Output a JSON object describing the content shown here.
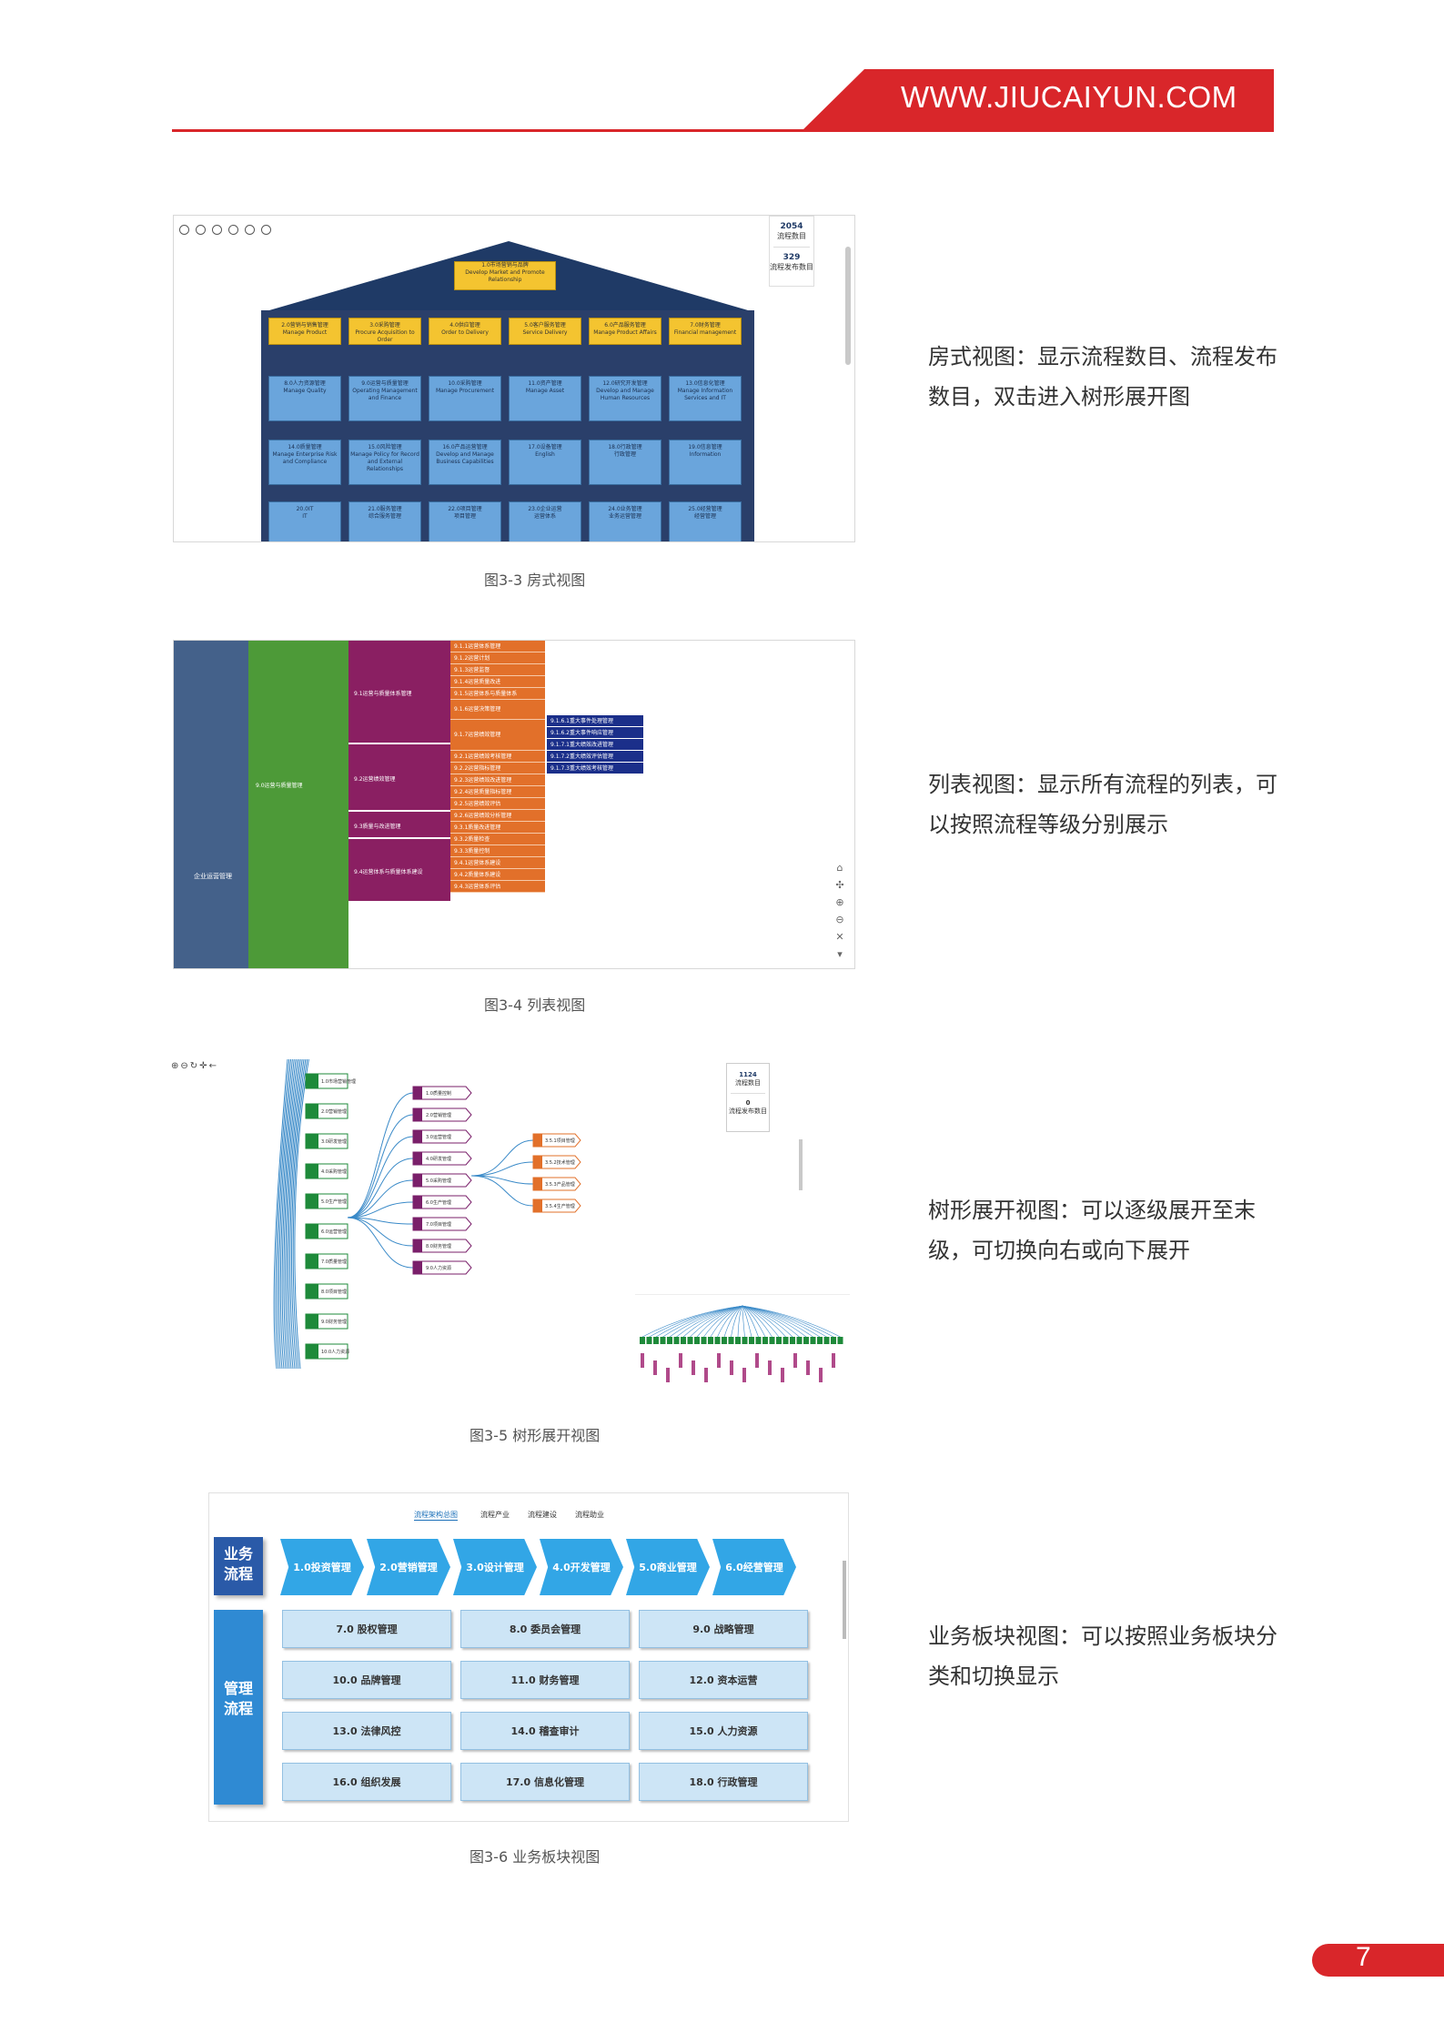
{
  "header": {
    "url": "WWW.JIUCAIYUN.COM",
    "page_number": "7"
  },
  "figures": [
    {
      "caption": "图3-3 房式视图",
      "description": "房式视图：显示流程数目、流程发布数目，双击进入树形展开图",
      "stats": {
        "process_count": "2054",
        "process_label": "流程数目",
        "published_count": "329",
        "published_label": "流程发布数目"
      },
      "roof": "1.0市场营销与品牌\nDevelop Market and Promote Relationship",
      "yellow": [
        "2.0营销与销售管理\nManage Product",
        "3.0采购管理\nProcure Acquisition to Order",
        "4.0供应管理\nOrder to Delivery",
        "5.0客户服务管理\nService Delivery",
        "6.0产品服务管理\nManage Product Affairs",
        "7.0财务管理\nFinancial management"
      ],
      "blue1": [
        "8.0人力资源管理\nManage Quality",
        "9.0运营与质量管理\nOperating Management and Finance",
        "10.0采购管理\nManage Procurement",
        "11.0资产管理\nManage Asset",
        "12.0研究开发管理\nDevelop and Manage Human Resources",
        "13.0信息化管理\nManage Information Services and IT"
      ],
      "blue2": [
        "14.0质量管理\nManage Enterprise Risk and Compliance",
        "15.0风险管理\nManage Policy for Record and External Relationships",
        "16.0产品运营管理\nDevelop and Manage Business Capabilities",
        "17.0设备管理\nEnglish",
        "18.0行政管理\n行政管理",
        "19.0信息管理\nInformation"
      ],
      "blue3": [
        "20.0IT\nIT",
        "21.0服务管理\n综合服务管理",
        "22.0项目管理\n项目管理",
        "23.0企业运营\n运营体系",
        "24.0业务管理\n业务运营管理",
        "25.0经营管理\n经营管理"
      ]
    },
    {
      "caption": "图3-4 列表视图",
      "description": "列表视图：显示所有流程的列表，可以按照流程等级分别展示",
      "l1": "企业运营管理",
      "l2": "9.0运营与质量管理",
      "l3": [
        "9.1运营与质量体系管理",
        "9.2运营绩效管理",
        "9.3质量与改进管理",
        "9.4运营体系与质量体系建设"
      ],
      "l4": [
        "9.1.1运营体系管理",
        "9.1.2运营计划",
        "9.1.3运营监督",
        "9.1.4运营质量改进",
        "9.1.5运营体系与质量体系",
        "9.1.6运营决策管理",
        "9.1.7运营绩效管理",
        "9.2.1运营绩效考核管理",
        "9.2.2运营指标管理",
        "9.2.3运营绩效改进管理",
        "9.2.4运营质量指标管理",
        "9.2.5运营绩效评估",
        "9.2.6运营绩效分析管理",
        "9.3.1质量改进管理",
        "9.3.2质量检查",
        "9.3.3质量控制",
        "9.4.1运营体系建设",
        "9.4.2质量体系建设",
        "9.4.3运营体系评估"
      ],
      "l5": [
        "9.1.6.1重大事件处理管理",
        "9.1.6.2重大事件响应管理",
        "9.1.7.1重大绩效改进管理",
        "9.1.7.2重大绩效评估管理",
        "9.1.7.3重大绩效考核管理"
      ]
    },
    {
      "caption": "图3-5 树形展开视图",
      "description": "树形展开视图：可以逐级展开至末级，可切换向右或向下展开",
      "stats": {
        "process_count": "1124",
        "process_label": "流程数目",
        "published_count": "0",
        "published_label": "流程发布数目"
      },
      "green": [
        "1.0市场营销管理",
        "2.0营销管理",
        "3.0研发管理",
        "4.0采购管理",
        "5.0生产管理",
        "6.0运营管理",
        "7.0质量管理",
        "8.0项目管理",
        "9.0财务管理",
        "10.0人力资源"
      ],
      "purple": [
        "1.0质量控制",
        "2.0营销管理",
        "3.0运营管理",
        "4.0研发管理",
        "5.0采购管理",
        "6.0生产管理",
        "7.0项目管理",
        "8.0财务管理",
        "9.0人力资源"
      ],
      "orange": [
        "3.5.1项目管理",
        "3.5.2技术管理",
        "3.5.3产品管理",
        "3.5.4生产管理"
      ]
    },
    {
      "caption": "图3-6 业务板块视图",
      "description": "业务板块视图：可以按照业务板块分类和切换显示",
      "tabs": [
        "流程架构总图",
        "流程产业",
        "流程建设",
        "流程助业"
      ],
      "business_label": "业务\n流程",
      "management_label": "管理\n流程",
      "business": [
        "1.0投资管理",
        "2.0营销管理",
        "3.0设计管理",
        "4.0开发管理",
        "5.0商业管理",
        "6.0经营管理"
      ],
      "management": [
        "7.0 股权管理",
        "8.0 委员会管理",
        "9.0 战略管理",
        "10.0 品牌管理",
        "11.0 财务管理",
        "12.0 资本运营",
        "13.0 法律风控",
        "14.0 稽查审计",
        "15.0 人力资源",
        "16.0 组织发展",
        "17.0 信息化管理",
        "18.0 行政管理"
      ]
    }
  ]
}
